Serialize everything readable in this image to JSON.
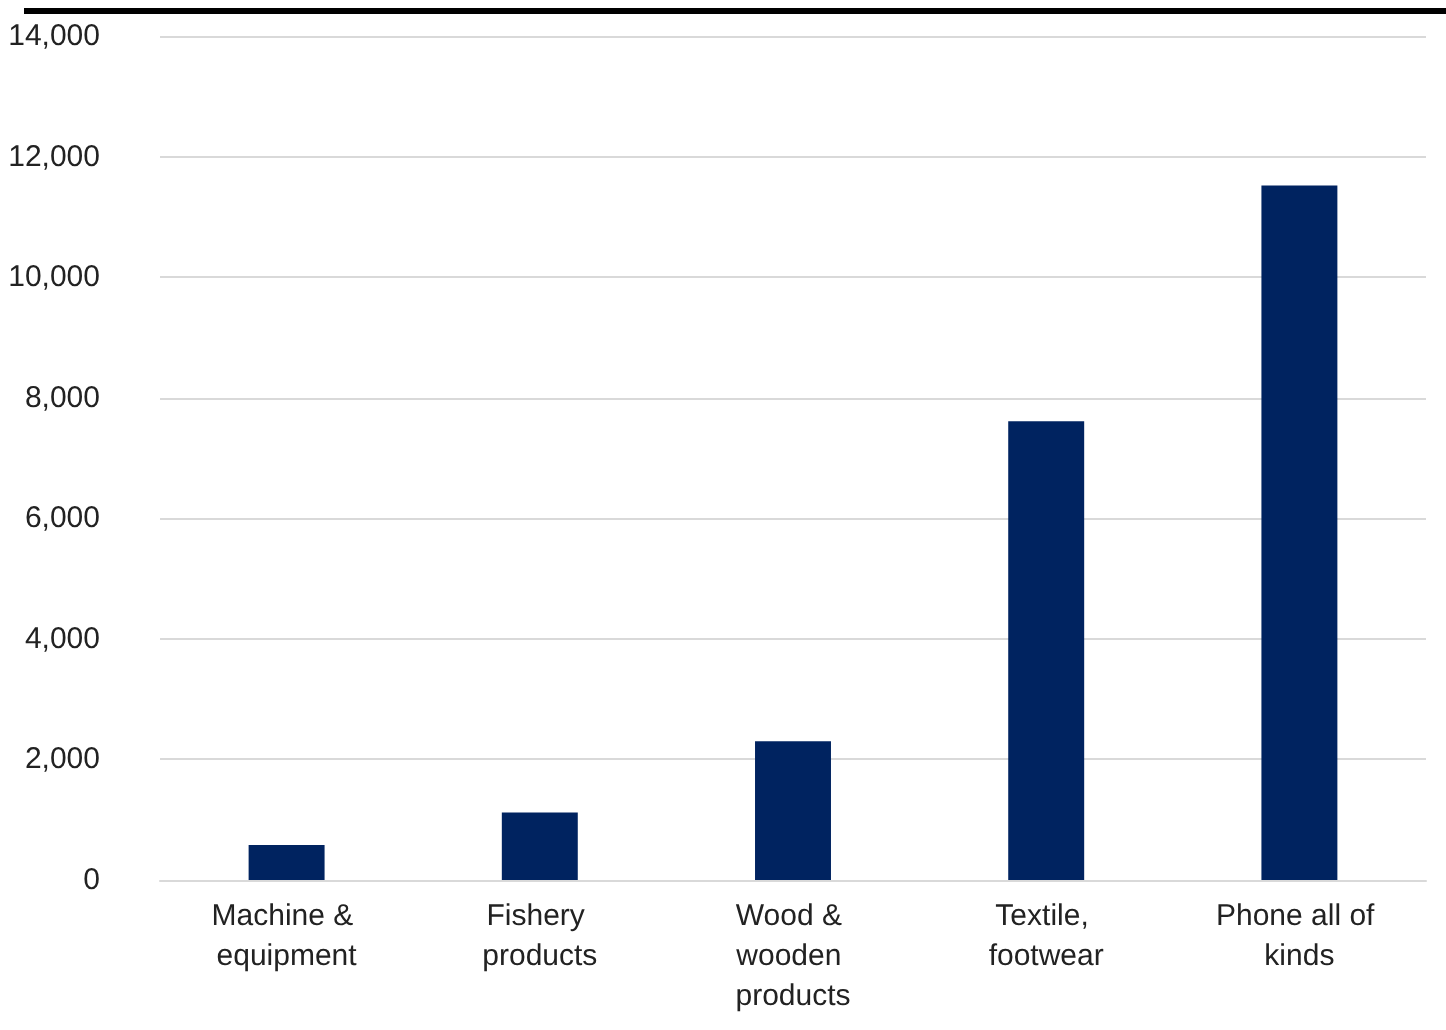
{
  "chart_data": {
    "type": "bar",
    "categories": [
      "Machine & equipment",
      "Fishery products",
      "Wood & wooden products",
      "Textile, footwear",
      "Phone all of kinds"
    ],
    "values": [
      580,
      1120,
      2300,
      7610,
      11520
    ],
    "color": "#002360",
    "ylim": [
      0,
      14000
    ],
    "yticks": [
      0,
      {
        "value": 2000,
        "label": "2,000"
      },
      {
        "value": 4000,
        "label": "4,000"
      },
      {
        "value": 6000,
        "label": "6,000"
      },
      {
        "value": 8000,
        "label": "8,000"
      },
      {
        "value": 10000,
        "label": "10,000"
      },
      {
        "value": 12000,
        "label": "12,000"
      },
      {
        "value": 14000,
        "label": "14,000"
      }
    ],
    "grid": "y"
  }
}
